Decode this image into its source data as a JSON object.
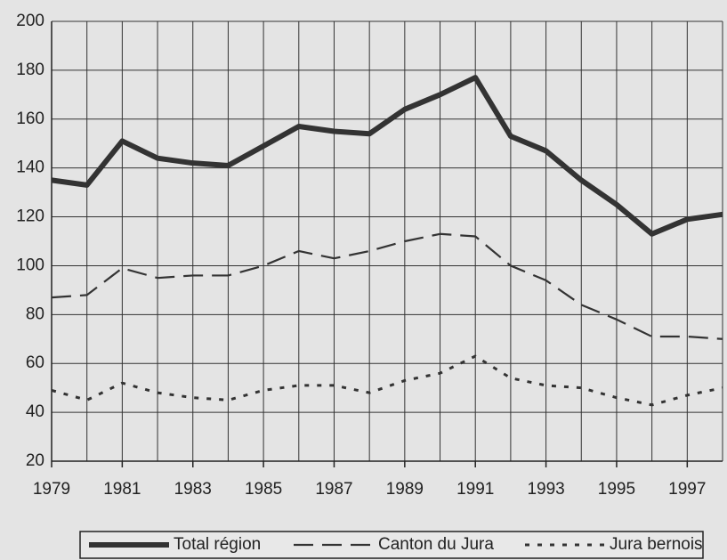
{
  "chart_data": {
    "type": "line",
    "x": [
      1979,
      1980,
      1981,
      1982,
      1983,
      1984,
      1985,
      1986,
      1987,
      1988,
      1989,
      1990,
      1991,
      1992,
      1993,
      1994,
      1995,
      1996,
      1997,
      1998
    ],
    "series": [
      {
        "name": "Total région",
        "color": "#333333",
        "style": "solid",
        "values": [
          135,
          133,
          151,
          144,
          142,
          141,
          149,
          157,
          155,
          154,
          164,
          170,
          177,
          153,
          147,
          135,
          125,
          113,
          119,
          121
        ]
      },
      {
        "name": "Canton du Jura",
        "color": "#333333",
        "style": "dashed",
        "values": [
          87,
          88,
          99,
          95,
          96,
          96,
          100,
          106,
          103,
          106,
          110,
          113,
          112,
          100,
          94,
          84,
          78,
          71,
          71,
          70
        ]
      },
      {
        "name": "Jura bernois",
        "color": "#333333",
        "style": "dotted",
        "values": [
          49,
          45,
          52,
          48,
          46,
          45,
          49,
          51,
          51,
          48,
          53,
          56,
          63,
          54,
          51,
          50,
          46,
          43,
          47,
          50
        ]
      }
    ],
    "xlim": [
      1979,
      1998
    ],
    "xticks": [
      1979,
      1981,
      1983,
      1985,
      1987,
      1989,
      1991,
      1993,
      1995,
      1997
    ],
    "ylim": [
      20,
      200
    ],
    "yticks": [
      20,
      40,
      60,
      80,
      100,
      120,
      140,
      160,
      180,
      200
    ],
    "grid": true,
    "legend": "bottom"
  }
}
